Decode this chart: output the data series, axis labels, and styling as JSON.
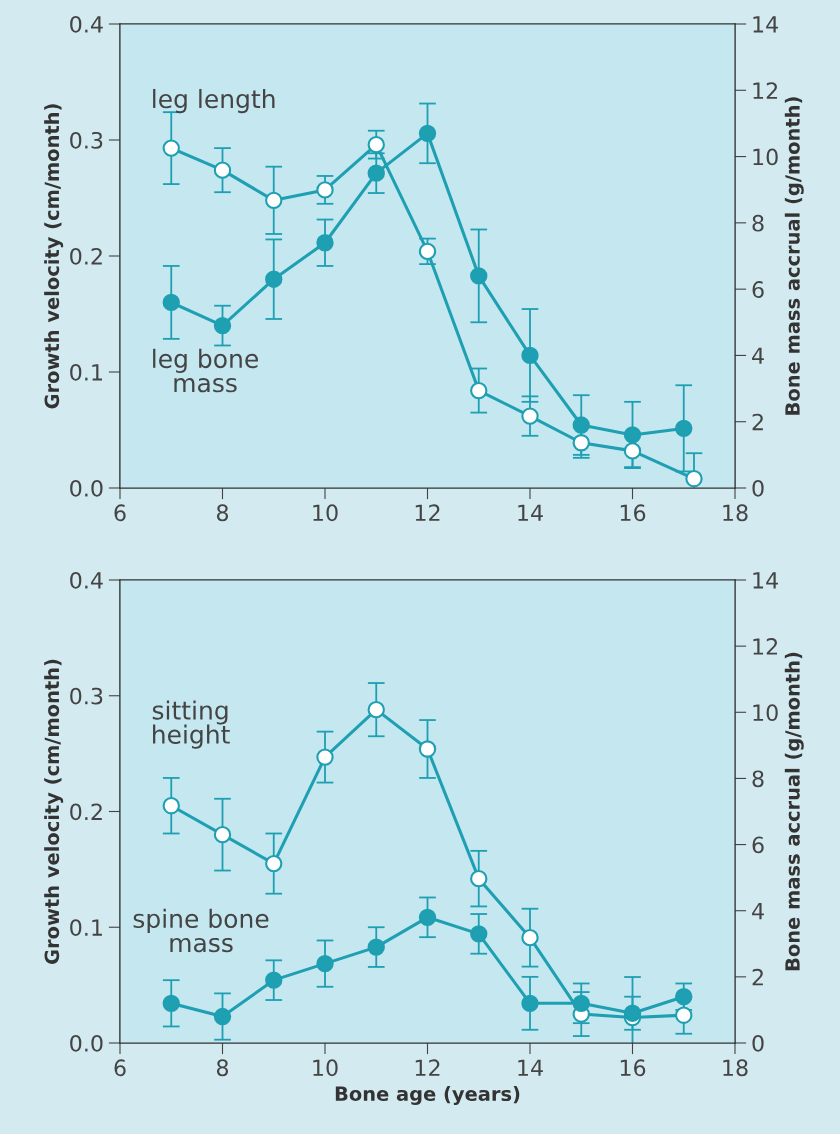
{
  "chart_data": [
    {
      "type": "line",
      "ylabel": "Growth velocity (cm/month)",
      "y2label": "Bone mass accrual (g/month)",
      "xlim": [
        6,
        18
      ],
      "xticks": [
        6,
        8,
        10,
        12,
        14,
        16,
        18
      ],
      "ylim": [
        0,
        0.4
      ],
      "yticks": [
        {
          "value": 0,
          "label": "0.0"
        },
        0.1,
        0.2,
        0.3,
        0.4
      ],
      "y2lim": [
        0,
        14
      ],
      "y2ticks": [
        0,
        2,
        4,
        6,
        8,
        10,
        12,
        14
      ],
      "grid": false,
      "legend": false,
      "marker": "circle",
      "line_style": "solid",
      "series": [
        {
          "name": "leg length",
          "color": "#1e9fb2",
          "x": [
            7,
            8,
            9,
            10,
            11,
            12,
            13,
            14,
            15,
            16,
            17.2
          ],
          "values": [
            0.293,
            0.274,
            0.248,
            0.257,
            0.296,
            0.204,
            0.084,
            0.062,
            0.039,
            0.032,
            0.008
          ],
          "errors": [
            0.031,
            0.019,
            0.029,
            0.012,
            0.012,
            0.011,
            0.019,
            0.017,
            0.013,
            0.014,
            0.022
          ]
        },
        {
          "name": "leg bone mass",
          "color": "#1e9fb2",
          "axis": "y2",
          "x": [
            7,
            8,
            9,
            10,
            11,
            12,
            13,
            14,
            15,
            16,
            17
          ],
          "values": [
            5.6,
            4.9,
            6.3,
            7.4,
            9.5,
            10.7,
            6.4,
            4.0,
            1.9,
            1.6,
            1.8
          ],
          "errors": [
            1.1,
            0.6,
            1.2,
            0.7,
            0.6,
            0.9,
            1.4,
            1.4,
            0.9,
            1.0,
            1.3
          ]
        }
      ]
    },
    {
      "type": "line",
      "xlabel": "Bone age (years)",
      "ylabel": "Growth velocity (cm/month)",
      "y2label": "Bone mass accrual (g/month)",
      "xlim": [
        6,
        18
      ],
      "xticks": [
        6,
        8,
        10,
        12,
        14,
        16,
        18
      ],
      "ylim": [
        0,
        0.4
      ],
      "yticks": [
        {
          "value": 0,
          "label": "0.0"
        },
        0.1,
        0.2,
        0.3,
        0.4
      ],
      "y2lim": [
        0,
        14
      ],
      "y2ticks": [
        0,
        2,
        4,
        6,
        8,
        10,
        12,
        14
      ],
      "grid": false,
      "legend": false,
      "marker": "circle",
      "line_style": "solid",
      "series": [
        {
          "name": "sitting height",
          "color": "#1e9fb2",
          "x": [
            7,
            8,
            9,
            10,
            11,
            12,
            13,
            14,
            15,
            16,
            17
          ],
          "values": [
            0.205,
            0.18,
            0.155,
            0.247,
            0.288,
            0.254,
            0.142,
            0.091,
            0.025,
            0.022,
            0.024
          ],
          "errors": [
            0.024,
            0.031,
            0.026,
            0.022,
            0.023,
            0.025,
            0.024,
            0.025,
            0.019,
            0.035,
            0.016
          ]
        },
        {
          "name": "spine bone mass",
          "color": "#1e9fb2",
          "axis": "y2",
          "x": [
            7,
            8,
            9,
            10,
            11,
            12,
            13,
            14,
            15,
            16,
            17
          ],
          "values": [
            1.2,
            0.8,
            1.9,
            2.4,
            2.9,
            3.8,
            3.3,
            1.2,
            1.2,
            0.9,
            1.4
          ],
          "errors": [
            0.7,
            0.7,
            0.6,
            0.7,
            0.6,
            0.6,
            0.6,
            0.8,
            0.6,
            0.5,
            0.4
          ]
        }
      ]
    }
  ]
}
